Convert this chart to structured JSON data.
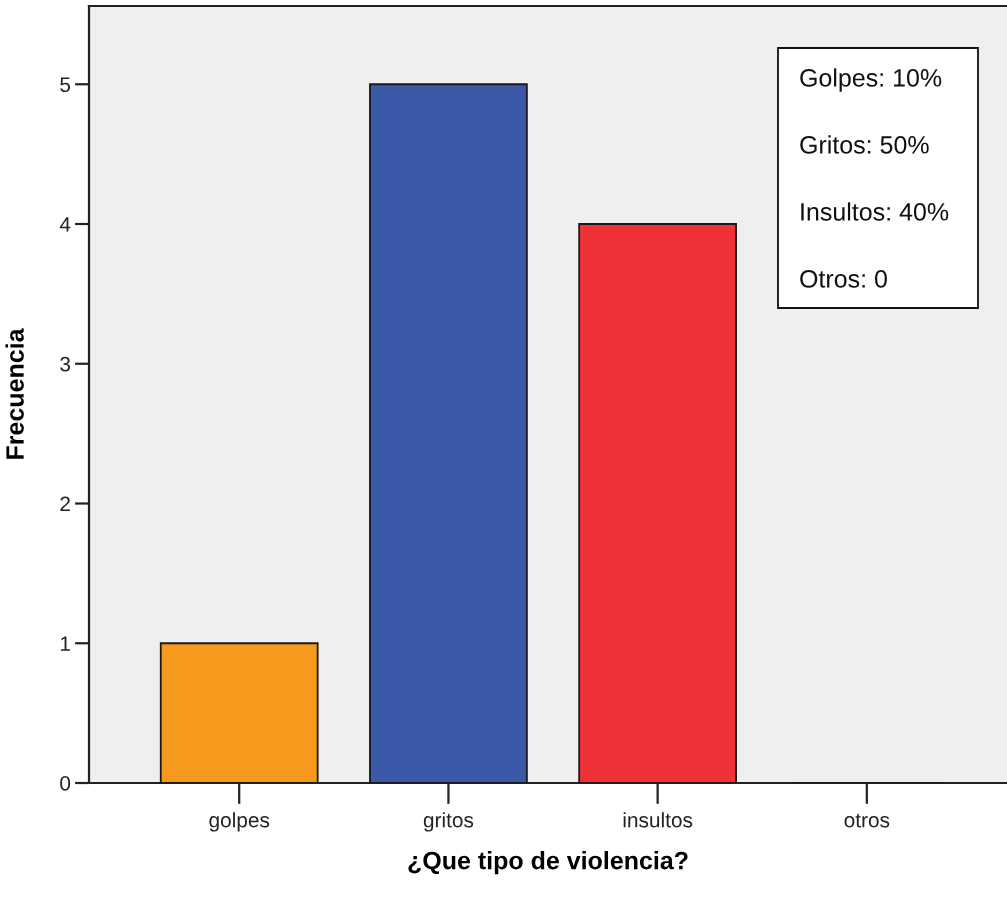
{
  "chart_data": {
    "type": "bar",
    "xlabel": "¿Que tipo de violencia?",
    "ylabel": "Frecuencia",
    "categories": [
      "golpes",
      "gritos",
      "insultos",
      "otros"
    ],
    "values": [
      1,
      5,
      4,
      0
    ],
    "colors": [
      "#f7991c",
      "#3c58a8",
      "#ef323a",
      null
    ],
    "ylim": [
      0,
      5.56
    ],
    "yticks": [
      0,
      1,
      2,
      3,
      4,
      5
    ],
    "annotations": [
      "Golpes: 10%",
      "Gritos: 50%",
      "Insultos: 40%",
      "Otros: 0"
    ]
  }
}
